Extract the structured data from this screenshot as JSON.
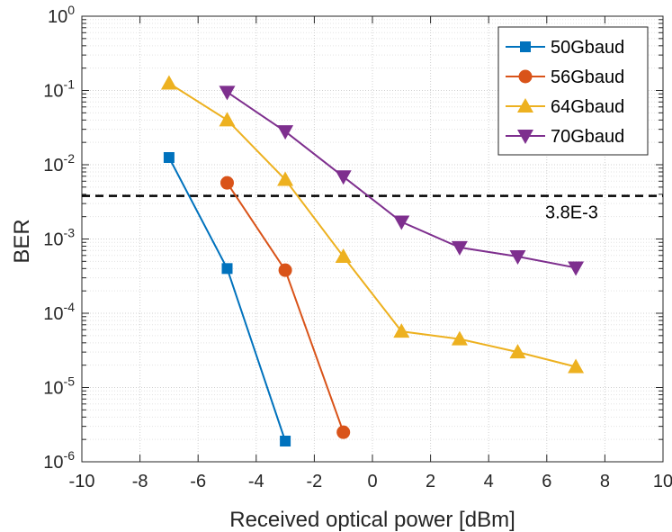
{
  "chart_data": {
    "type": "line",
    "title": "",
    "xlabel": "Received optical power [dBm]",
    "ylabel": "BER",
    "xlim": [
      -10,
      10
    ],
    "ylim": [
      1e-06,
      1
    ],
    "yscale": "log",
    "grid": true,
    "legend_position": "top-right",
    "x_ticks": [
      -10,
      -8,
      -6,
      -4,
      -2,
      0,
      2,
      4,
      6,
      8,
      10
    ],
    "x_tick_labels": [
      "-10",
      "-8",
      "-6",
      "-4",
      "-2",
      "0",
      "2",
      "4",
      "6",
      "8",
      "10"
    ],
    "y_ticks": [
      {
        "value": 1,
        "base": "10",
        "exp": "0"
      },
      {
        "value": 0.1,
        "base": "10",
        "exp": "-1"
      },
      {
        "value": 0.01,
        "base": "10",
        "exp": "-2"
      },
      {
        "value": 0.001,
        "base": "10",
        "exp": "-3"
      },
      {
        "value": 0.0001,
        "base": "10",
        "exp": "-4"
      },
      {
        "value": 1e-05,
        "base": "10",
        "exp": "-5"
      },
      {
        "value": 1e-06,
        "base": "10",
        "exp": "-6"
      }
    ],
    "series": [
      {
        "name": "50Gbaud",
        "color": "#0072BD",
        "marker": "square",
        "x": [
          -7,
          -5,
          -3
        ],
        "y": [
          0.0125,
          0.0004,
          1.9e-06
        ]
      },
      {
        "name": "56Gbaud",
        "color": "#D95319",
        "marker": "circle",
        "x": [
          -5,
          -3,
          -1
        ],
        "y": [
          0.0057,
          0.00038,
          2.5e-06
        ]
      },
      {
        "name": "64Gbaud",
        "color": "#EDB120",
        "marker": "triangle-up",
        "x": [
          -7,
          -5,
          -3,
          -1,
          1,
          3,
          5,
          7
        ],
        "y": [
          0.125,
          0.04,
          0.0063,
          0.00058,
          5.7e-05,
          4.5e-05,
          3e-05,
          1.9e-05
        ]
      },
      {
        "name": "70Gbaud",
        "color": "#7E2F8E",
        "marker": "triangle-down",
        "x": [
          -5,
          -3,
          -1,
          1,
          3,
          5,
          7
        ],
        "y": [
          0.095,
          0.028,
          0.0069,
          0.0017,
          0.00077,
          0.00058,
          0.00041
        ]
      }
    ],
    "threshold": {
      "value": 0.0038,
      "label": "3.8E-3",
      "style": "dashed",
      "color": "#000000"
    }
  }
}
